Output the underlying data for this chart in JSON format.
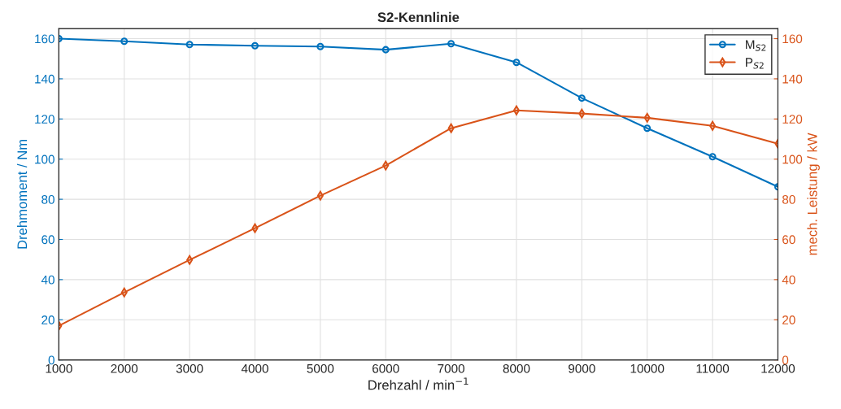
{
  "chart_data": {
    "type": "line",
    "title": "S2-Kennlinie",
    "xlabel": "Drehzahl / min$^{−1}$",
    "ylabel": "Drehmoment / Nm",
    "y2label": "mech. Leistung / kW",
    "x": [
      1000,
      2000,
      3000,
      4000,
      5000,
      6000,
      7000,
      8000,
      9000,
      10000,
      11000,
      12000
    ],
    "series": [
      {
        "name": "M$_{S2}$",
        "color": "#0072bd",
        "marker": "circle",
        "values": [
          160,
          158.7,
          157.1,
          156.5,
          156.1,
          154.5,
          157.5,
          148.2,
          130.4,
          115.4,
          101.2,
          86.2
        ]
      },
      {
        "name": "P$_{S2}$",
        "color": "#d95319",
        "marker": "diamond",
        "axis": "y2",
        "values": [
          17,
          33.6,
          49.8,
          65.6,
          81.8,
          96.8,
          115.4,
          124.3,
          122.7,
          120.6,
          116.6,
          107.7
        ]
      }
    ],
    "xlim": [
      1000,
      12000
    ],
    "xticks": [
      1000,
      2000,
      3000,
      4000,
      5000,
      6000,
      7000,
      8000,
      9000,
      10000,
      11000,
      12000
    ],
    "ylim": [
      0,
      165
    ],
    "yticks": [
      0,
      20,
      40,
      60,
      80,
      100,
      120,
      140,
      160
    ],
    "y2lim": [
      0,
      165
    ],
    "y2ticks": [
      0,
      20,
      40,
      60,
      80,
      100,
      120,
      140,
      160
    ],
    "grid": true,
    "legend": "top right",
    "line_style": "solid"
  }
}
